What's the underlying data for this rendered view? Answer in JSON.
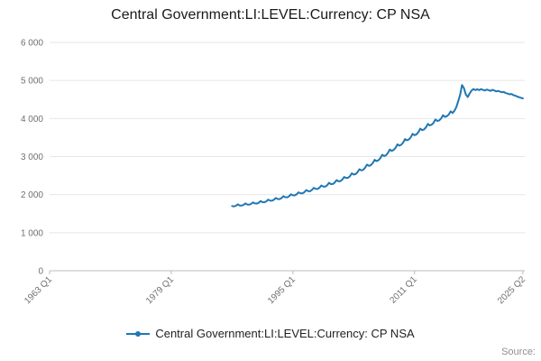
{
  "page": {
    "title": "Central Government:LI:LEVEL:Currency: CP NSA",
    "source_label": "Source:"
  },
  "legend": {
    "label": "Central Government:LI:LEVEL:Currency: CP NSA"
  },
  "chart_data": {
    "type": "line",
    "title": "Central Government:LI:LEVEL:Currency: CP NSA",
    "xlabel": "",
    "ylabel": "",
    "x_domain": [
      1963,
      2025.5
    ],
    "y_domain": [
      0,
      6000
    ],
    "grid": "horizontal",
    "legend_position": "bottom",
    "line_color": "#1f77b4",
    "axis_text_color": "#707071",
    "grid_color": "#e6e6e6",
    "axis_line_color": "#bdbdbd",
    "y_ticks": [
      {
        "value": 0,
        "label": "0"
      },
      {
        "value": 1000,
        "label": "1 000"
      },
      {
        "value": 2000,
        "label": "2 000"
      },
      {
        "value": 3000,
        "label": "3 000"
      },
      {
        "value": 4000,
        "label": "4 000"
      },
      {
        "value": 5000,
        "label": "5 000"
      },
      {
        "value": 6000,
        "label": "6 000"
      }
    ],
    "x_ticks": [
      {
        "value": 1963.0,
        "label": "1963 Q1"
      },
      {
        "value": 1979.0,
        "label": "1979 Q1"
      },
      {
        "value": 1995.0,
        "label": "1995 Q1"
      },
      {
        "value": 2011.0,
        "label": "2011 Q1"
      },
      {
        "value": 2025.25,
        "label": "2025 Q2"
      }
    ],
    "series": [
      {
        "name": "Central Government:LI:LEVEL:Currency: CP NSA",
        "frequency": "quarterly",
        "x_start": 1987.0,
        "x_step": 0.25,
        "values": [
          1700,
          1690,
          1705,
          1745,
          1715,
          1712,
          1728,
          1768,
          1740,
          1736,
          1755,
          1796,
          1768,
          1765,
          1786,
          1830,
          1802,
          1800,
          1822,
          1868,
          1842,
          1840,
          1864,
          1912,
          1886,
          1884,
          1910,
          1960,
          1932,
          1930,
          1956,
          2008,
          1982,
          1980,
          2008,
          2062,
          2036,
          2034,
          2064,
          2120,
          2092,
          2090,
          2122,
          2180,
          2150,
          2148,
          2182,
          2242,
          2210,
          2210,
          2246,
          2310,
          2276,
          2278,
          2316,
          2382,
          2350,
          2354,
          2395,
          2465,
          2435,
          2442,
          2486,
          2560,
          2528,
          2540,
          2590,
          2668,
          2636,
          2652,
          2706,
          2788,
          2756,
          2774,
          2830,
          2915,
          2882,
          2902,
          2960,
          3048,
          3014,
          3035,
          3094,
          3184,
          3150,
          3172,
          3230,
          3322,
          3288,
          3310,
          3368,
          3460,
          3426,
          3448,
          3505,
          3598,
          3562,
          3584,
          3640,
          3732,
          3695,
          3715,
          3768,
          3858,
          3820,
          3838,
          3888,
          3975,
          3936,
          3952,
          4000,
          4085,
          4044,
          4060,
          4105,
          4188,
          4146,
          4205,
          4300,
          4455,
          4620,
          4880,
          4800,
          4630,
          4565,
          4660,
          4735,
          4775,
          4748,
          4768,
          4745,
          4772,
          4752,
          4736,
          4762,
          4746,
          4726,
          4756,
          4736,
          4712,
          4726,
          4706,
          4692,
          4698,
          4668,
          4656,
          4636,
          4646,
          4616,
          4600,
          4576,
          4560,
          4545,
          4530
        ]
      }
    ]
  }
}
